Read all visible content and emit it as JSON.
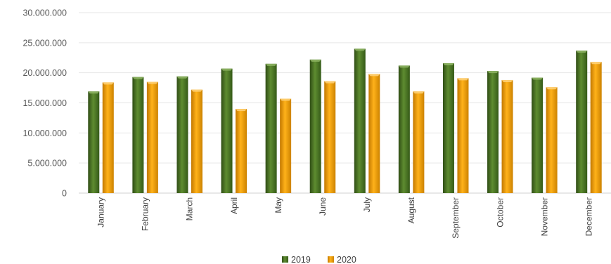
{
  "chart_data": {
    "type": "bar",
    "title": "",
    "xlabel": "",
    "ylabel": "",
    "ylim": [
      0,
      30000000
    ],
    "yticks": [
      "0",
      "5.000.000",
      "10.000.000",
      "15.000.000",
      "20.000.000",
      "25.000.000",
      "30.000.000"
    ],
    "grid": true,
    "legend": "bottom-center",
    "categories": [
      "January",
      "February",
      "March",
      "April",
      "May",
      "June",
      "July",
      "August",
      "September",
      "October",
      "November",
      "December"
    ],
    "series": [
      {
        "name": "2019",
        "color": "#4f7a28",
        "values": [
          16900000,
          19300000,
          19400000,
          20700000,
          21500000,
          22200000,
          24000000,
          21200000,
          21600000,
          20300000,
          19200000,
          23700000
        ]
      },
      {
        "name": "2020",
        "color": "#f0a000",
        "values": [
          18400000,
          18500000,
          17200000,
          14000000,
          15700000,
          18600000,
          19800000,
          16900000,
          19100000,
          18800000,
          17600000,
          21800000
        ]
      }
    ]
  }
}
